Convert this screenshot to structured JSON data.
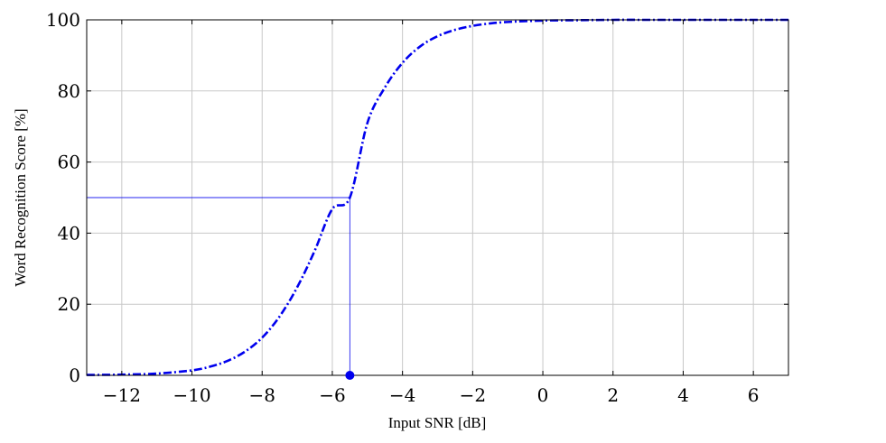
{
  "chart_data": {
    "type": "line",
    "xlabel": "Input SNR [dB]",
    "ylabel": "Word Recognition Score [%]",
    "xlim": [
      -13,
      7
    ],
    "ylim": [
      0,
      100
    ],
    "x_ticks": [
      -12,
      -10,
      -8,
      -6,
      -4,
      -2,
      0,
      2,
      4,
      6
    ],
    "x_tick_labels": [
      "−12",
      "−10",
      "−8",
      "−6",
      "−4",
      "−2",
      "0",
      "2",
      "4",
      "6"
    ],
    "y_ticks": [
      0,
      20,
      40,
      60,
      80,
      100
    ],
    "y_tick_labels": [
      "0",
      "20",
      "40",
      "60",
      "80",
      "100"
    ],
    "grid": true,
    "series": [
      {
        "style": "dash-dot",
        "color": "#0000ee",
        "x": [
          -13,
          -12,
          -11,
          -10,
          -9.5,
          -9,
          -8.5,
          -8,
          -7.5,
          -7,
          -6.5,
          -6,
          -5.5,
          -5,
          -4.5,
          -4,
          -3.5,
          -3,
          -2.5,
          -2,
          -1.5,
          -1,
          0,
          1,
          2,
          3,
          4,
          5,
          6,
          7
        ],
        "y": [
          0.1,
          0.2,
          0.5,
          1.4,
          2.4,
          4.0,
          6.6,
          10.6,
          16.6,
          24.8,
          35.1,
          46.8,
          50.0,
          71.0,
          81.0,
          87.9,
          92.5,
          95.4,
          97.2,
          98.3,
          99.0,
          99.4,
          99.8,
          99.9,
          100,
          100,
          100,
          100,
          100,
          100
        ]
      }
    ],
    "annotation": {
      "color": "#0000ee",
      "srt_x": -5.5,
      "srt_y": 50,
      "marker": "filled-circle"
    }
  }
}
